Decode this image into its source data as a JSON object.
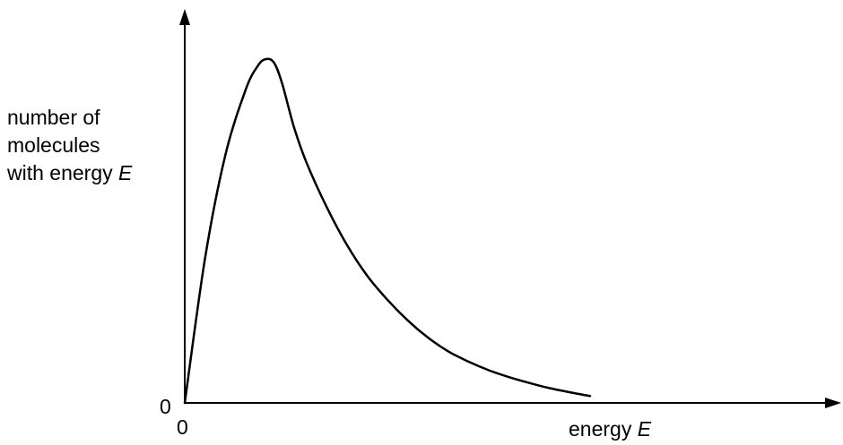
{
  "chart_data": {
    "type": "line",
    "title": "",
    "xlabel": "energy",
    "xlabel_symbol": "E",
    "ylabel_lines": [
      "number of",
      "molecules",
      "with energy"
    ],
    "ylabel_symbol": "E",
    "x_tick_labels": [
      "0"
    ],
    "y_tick_labels": [
      "0"
    ],
    "xlim": [
      0,
      100
    ],
    "ylim": [
      0,
      100
    ],
    "grid": false,
    "legend": "none",
    "series": [
      {
        "x": [
          0,
          5,
          10,
          15,
          18,
          20,
          22,
          24,
          27,
          30,
          35,
          40,
          45,
          50,
          55,
          60,
          65,
          70,
          75,
          80,
          85,
          90,
          95,
          100
        ],
        "y": [
          0,
          42,
          72,
          91,
          98,
          100,
          99,
          93,
          80,
          70,
          57,
          46,
          37,
          30,
          24,
          19,
          15,
          12,
          9.5,
          7.5,
          5.8,
          4.3,
          3.1,
          2
        ]
      }
    ],
    "line_color": "#000000"
  }
}
